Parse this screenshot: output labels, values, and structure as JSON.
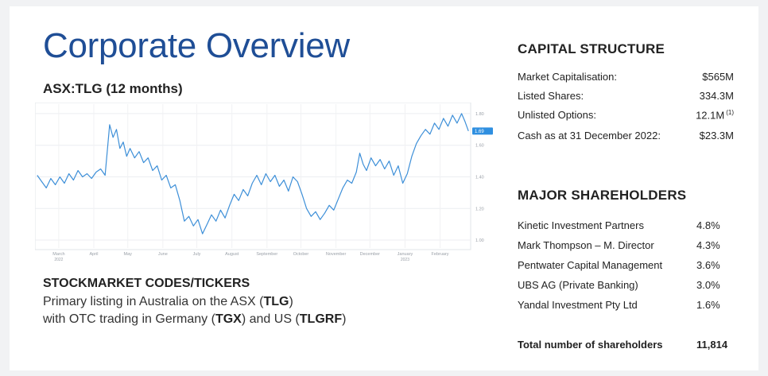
{
  "title": "Corporate Overview",
  "chart_heading": "ASX:TLG (12 months)",
  "chart_data": {
    "type": "line",
    "title": "ASX:TLG (12 months)",
    "ylim": [
      0.95,
      1.86
    ],
    "y_ticks": [
      "1.80",
      "1.60",
      "1.40",
      "1.20",
      "1.00"
    ],
    "y_tick_values": [
      1.8,
      1.6,
      1.4,
      1.2,
      1.0
    ],
    "x_ticks": [
      {
        "label": "March",
        "sub": "2022",
        "x": "2022-03-01"
      },
      {
        "label": "April",
        "sub": "",
        "x": "2022-04-01"
      },
      {
        "label": "May",
        "sub": "",
        "x": "2022-05-01"
      },
      {
        "label": "June",
        "sub": "",
        "x": "2022-06-01"
      },
      {
        "label": "July",
        "sub": "",
        "x": "2022-07-01"
      },
      {
        "label": "August",
        "sub": "",
        "x": "2022-08-01"
      },
      {
        "label": "September",
        "sub": "",
        "x": "2022-09-01"
      },
      {
        "label": "October",
        "sub": "",
        "x": "2022-10-01"
      },
      {
        "label": "November",
        "sub": "",
        "x": "2022-11-01"
      },
      {
        "label": "December",
        "sub": "",
        "x": "2022-12-01"
      },
      {
        "label": "January",
        "sub": "2023",
        "x": "2023-01-01"
      },
      {
        "label": "February",
        "sub": "",
        "x": "2023-02-01"
      }
    ],
    "last_price_label": "1.69",
    "grid": true,
    "series": [
      {
        "color": "#3d8fd8",
        "points": [
          [
            "2022-02-10",
            1.41
          ],
          [
            "2022-02-14",
            1.37
          ],
          [
            "2022-02-18",
            1.33
          ],
          [
            "2022-02-22",
            1.39
          ],
          [
            "2022-02-26",
            1.35
          ],
          [
            "2022-03-02",
            1.4
          ],
          [
            "2022-03-06",
            1.36
          ],
          [
            "2022-03-10",
            1.42
          ],
          [
            "2022-03-14",
            1.38
          ],
          [
            "2022-03-18",
            1.44
          ],
          [
            "2022-03-22",
            1.4
          ],
          [
            "2022-03-26",
            1.42
          ],
          [
            "2022-03-30",
            1.39
          ],
          [
            "2022-04-03",
            1.43
          ],
          [
            "2022-04-07",
            1.45
          ],
          [
            "2022-04-11",
            1.41
          ],
          [
            "2022-04-15",
            1.73
          ],
          [
            "2022-04-18",
            1.65
          ],
          [
            "2022-04-21",
            1.7
          ],
          [
            "2022-04-24",
            1.58
          ],
          [
            "2022-04-27",
            1.62
          ],
          [
            "2022-04-30",
            1.53
          ],
          [
            "2022-05-03",
            1.58
          ],
          [
            "2022-05-07",
            1.52
          ],
          [
            "2022-05-11",
            1.56
          ],
          [
            "2022-05-15",
            1.49
          ],
          [
            "2022-05-19",
            1.52
          ],
          [
            "2022-05-23",
            1.44
          ],
          [
            "2022-05-27",
            1.47
          ],
          [
            "2022-05-31",
            1.38
          ],
          [
            "2022-06-04",
            1.41
          ],
          [
            "2022-06-08",
            1.33
          ],
          [
            "2022-06-12",
            1.35
          ],
          [
            "2022-06-16",
            1.25
          ],
          [
            "2022-06-20",
            1.12
          ],
          [
            "2022-06-24",
            1.15
          ],
          [
            "2022-06-28",
            1.09
          ],
          [
            "2022-07-02",
            1.13
          ],
          [
            "2022-07-06",
            1.04
          ],
          [
            "2022-07-10",
            1.1
          ],
          [
            "2022-07-14",
            1.16
          ],
          [
            "2022-07-18",
            1.12
          ],
          [
            "2022-07-22",
            1.19
          ],
          [
            "2022-07-26",
            1.14
          ],
          [
            "2022-07-30",
            1.22
          ],
          [
            "2022-08-03",
            1.29
          ],
          [
            "2022-08-07",
            1.25
          ],
          [
            "2022-08-11",
            1.32
          ],
          [
            "2022-08-15",
            1.28
          ],
          [
            "2022-08-19",
            1.36
          ],
          [
            "2022-08-23",
            1.41
          ],
          [
            "2022-08-27",
            1.35
          ],
          [
            "2022-08-31",
            1.42
          ],
          [
            "2022-09-04",
            1.37
          ],
          [
            "2022-09-08",
            1.41
          ],
          [
            "2022-09-12",
            1.34
          ],
          [
            "2022-09-16",
            1.38
          ],
          [
            "2022-09-20",
            1.31
          ],
          [
            "2022-09-24",
            1.4
          ],
          [
            "2022-09-28",
            1.37
          ],
          [
            "2022-10-02",
            1.29
          ],
          [
            "2022-10-06",
            1.2
          ],
          [
            "2022-10-10",
            1.15
          ],
          [
            "2022-10-14",
            1.18
          ],
          [
            "2022-10-18",
            1.13
          ],
          [
            "2022-10-22",
            1.17
          ],
          [
            "2022-10-26",
            1.22
          ],
          [
            "2022-10-30",
            1.19
          ],
          [
            "2022-11-03",
            1.26
          ],
          [
            "2022-11-07",
            1.33
          ],
          [
            "2022-11-11",
            1.38
          ],
          [
            "2022-11-15",
            1.36
          ],
          [
            "2022-11-19",
            1.43
          ],
          [
            "2022-11-22",
            1.55
          ],
          [
            "2022-11-25",
            1.48
          ],
          [
            "2022-11-28",
            1.44
          ],
          [
            "2022-12-02",
            1.52
          ],
          [
            "2022-12-06",
            1.47
          ],
          [
            "2022-12-10",
            1.51
          ],
          [
            "2022-12-14",
            1.45
          ],
          [
            "2022-12-18",
            1.5
          ],
          [
            "2022-12-22",
            1.41
          ],
          [
            "2022-12-26",
            1.47
          ],
          [
            "2022-12-30",
            1.36
          ],
          [
            "2023-01-03",
            1.42
          ],
          [
            "2023-01-07",
            1.53
          ],
          [
            "2023-01-11",
            1.61
          ],
          [
            "2023-01-15",
            1.66
          ],
          [
            "2023-01-19",
            1.7
          ],
          [
            "2023-01-23",
            1.67
          ],
          [
            "2023-01-27",
            1.74
          ],
          [
            "2023-01-31",
            1.7
          ],
          [
            "2023-02-04",
            1.77
          ],
          [
            "2023-02-08",
            1.72
          ],
          [
            "2023-02-12",
            1.79
          ],
          [
            "2023-02-16",
            1.74
          ],
          [
            "2023-02-20",
            1.8
          ],
          [
            "2023-02-23",
            1.75
          ],
          [
            "2023-02-26",
            1.69
          ]
        ]
      }
    ]
  },
  "tickers": {
    "heading": "STOCKMARKET CODES/TICKERS",
    "line1_prefix": "Primary listing in Australia on the ASX (",
    "line1_code": "TLG",
    "line1_suffix": ")",
    "line2_prefix": "with OTC trading in Germany (",
    "line2_code1": "TGX",
    "line2_middle": ") and US (",
    "line2_code2": "TLGRF",
    "line2_suffix": ")"
  },
  "capital_structure": {
    "heading": "CAPITAL STRUCTURE",
    "rows": [
      {
        "label": "Market Capitalisation:",
        "value": "$565M",
        "note": ""
      },
      {
        "label": "Listed Shares:",
        "value": "334.3M",
        "note": ""
      },
      {
        "label": "Unlisted Options:",
        "value": "12.1M",
        "note": "(1)"
      },
      {
        "label": "Cash as at 31 December 2022:",
        "value": "$23.3M",
        "note": ""
      }
    ]
  },
  "major_shareholders": {
    "heading": "MAJOR SHAREHOLDERS",
    "rows": [
      {
        "name": "Kinetic Investment Partners",
        "pct": "4.8%"
      },
      {
        "name": "Mark Thompson – M. Director",
        "pct": "4.3%"
      },
      {
        "name": "Pentwater Capital Management",
        "pct": "3.6%"
      },
      {
        "name": "UBS AG (Private Banking)",
        "pct": "3.0%"
      },
      {
        "name": "Yandal Investment Pty Ltd",
        "pct": "1.6%"
      }
    ],
    "total_label": "Total number of shareholders",
    "total_value": "11,814"
  }
}
